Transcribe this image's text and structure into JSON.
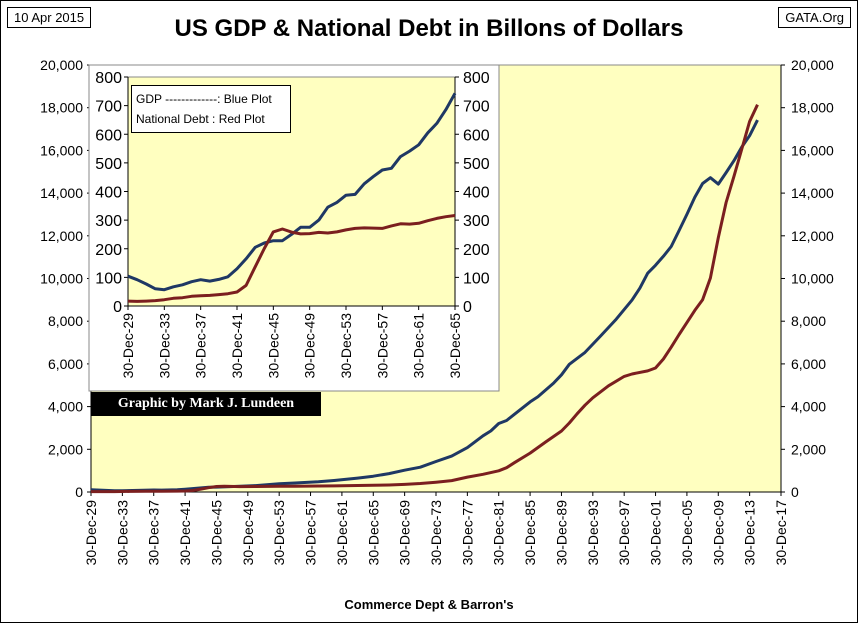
{
  "header": {
    "date": "10 Apr 2015",
    "title": "US GDP & National Debt in Billons of Dollars",
    "source": "GATA.Org"
  },
  "footer": {
    "source": "Commerce Dept & Barron's"
  },
  "credit": "Graphic by Mark J. Lundeen",
  "legend": {
    "gdp": "GDP -------------: Blue Plot",
    "debt": "National Debt : Red Plot"
  },
  "colors": {
    "plot_bg": "#ffffc0",
    "gdp": "#1f3864",
    "debt": "#7b1f1f",
    "inset_bg": "#ffffc0"
  },
  "chart_data": [
    {
      "type": "line",
      "title": "US GDP & National Debt in Billons of Dollars",
      "xlabel": "",
      "ylabel": "",
      "xlim": [
        1929,
        2017
      ],
      "ylim": [
        0,
        20000
      ],
      "y_ticks": [
        "0",
        "2,000",
        "4,000",
        "6,000",
        "8,000",
        "10,000",
        "12,000",
        "14,000",
        "16,000",
        "18,000",
        "20,000"
      ],
      "x_ticks": [
        "30-Dec-29",
        "30-Dec-33",
        "30-Dec-37",
        "30-Dec-41",
        "30-Dec-45",
        "30-Dec-49",
        "30-Dec-53",
        "30-Dec-57",
        "30-Dec-61",
        "30-Dec-65",
        "30-Dec-69",
        "30-Dec-73",
        "30-Dec-77",
        "30-Dec-81",
        "30-Dec-85",
        "30-Dec-89",
        "30-Dec-93",
        "30-Dec-97",
        "30-Dec-01",
        "30-Dec-05",
        "30-Dec-09",
        "30-Dec-13",
        "30-Dec-17"
      ],
      "grid": false,
      "series": [
        {
          "name": "GDP",
          "x": [
            1929,
            1932,
            1933,
            1935,
            1937,
            1938,
            1940,
            1941,
            1944,
            1945,
            1948,
            1950,
            1953,
            1955,
            1958,
            1960,
            1963,
            1965,
            1967,
            1969,
            1971,
            1973,
            1975,
            1977,
            1979,
            1980,
            1981,
            1982,
            1983,
            1985,
            1986,
            1988,
            1989,
            1990,
            1992,
            1994,
            1996,
            1998,
            1999,
            2000,
            2001,
            2002,
            2003,
            2004,
            2005,
            2006,
            2007,
            2008,
            2009,
            2010,
            2011,
            2012,
            2013,
            2014
          ],
          "y": [
            104,
            60,
            57,
            74,
            92,
            87,
            102,
            130,
            220,
            228,
            270,
            300,
            390,
            420,
            480,
            540,
            650,
            740,
            860,
            1020,
            1160,
            1430,
            1680,
            2080,
            2630,
            2860,
            3210,
            3350,
            3640,
            4220,
            4460,
            5100,
            5490,
            5980,
            6540,
            7310,
            8100,
            8990,
            9550,
            10250,
            10620,
            11040,
            11500,
            12250,
            13000,
            13810,
            14450,
            14720,
            14420,
            14960,
            15520,
            16160,
            16690,
            17420
          ]
        },
        {
          "name": "National Debt",
          "x": [
            1929,
            1932,
            1934,
            1936,
            1938,
            1940,
            1941,
            1942,
            1943,
            1944,
            1945,
            1946,
            1948,
            1950,
            1953,
            1955,
            1958,
            1960,
            1963,
            1965,
            1967,
            1969,
            1971,
            1973,
            1975,
            1977,
            1979,
            1981,
            1982,
            1983,
            1985,
            1987,
            1989,
            1990,
            1991,
            1992,
            1993,
            1995,
            1997,
            1998,
            2000,
            2001,
            2002,
            2003,
            2004,
            2005,
            2006,
            2007,
            2008,
            2009,
            2010,
            2011,
            2012,
            2013,
            2014
          ],
          "y": [
            17,
            19,
            27,
            34,
            37,
            43,
            49,
            72,
            137,
            201,
            259,
            269,
            252,
            257,
            266,
            273,
            280,
            286,
            306,
            316,
            326,
            354,
            398,
            458,
            533,
            699,
            827,
            995,
            1137,
            1372,
            1823,
            2346,
            2857,
            3233,
            3665,
            4065,
            4411,
            4974,
            5413,
            5526,
            5674,
            5807,
            6228,
            6783,
            7379,
            7933,
            8507,
            9008,
            10025,
            11910,
            13562,
            14790,
            16066,
            17352,
            18141
          ]
        }
      ]
    },
    {
      "type": "line",
      "title": "",
      "xlabel": "",
      "ylabel": "",
      "xlim": [
        1929,
        1965
      ],
      "ylim": [
        0,
        800
      ],
      "y_ticks": [
        "0",
        "100",
        "200",
        "300",
        "400",
        "500",
        "600",
        "700",
        "800"
      ],
      "x_ticks": [
        "30-Dec-29",
        "30-Dec-33",
        "30-Dec-37",
        "30-Dec-41",
        "30-Dec-45",
        "30-Dec-49",
        "30-Dec-53",
        "30-Dec-57",
        "30-Dec-61",
        "30-Dec-65"
      ],
      "grid": false,
      "series": [
        {
          "name": "GDP",
          "x": [
            1929,
            1930,
            1931,
            1932,
            1933,
            1934,
            1935,
            1936,
            1937,
            1938,
            1939,
            1940,
            1941,
            1942,
            1943,
            1944,
            1945,
            1946,
            1947,
            1948,
            1949,
            1950,
            1951,
            1952,
            1953,
            1954,
            1955,
            1956,
            1957,
            1958,
            1959,
            1960,
            1961,
            1962,
            1963,
            1964,
            1965
          ],
          "y": [
            104,
            92,
            77,
            60,
            57,
            67,
            74,
            85,
            92,
            87,
            93,
            102,
            130,
            165,
            205,
            220,
            228,
            228,
            250,
            275,
            275,
            300,
            345,
            362,
            387,
            390,
            427,
            452,
            475,
            481,
            522,
            541,
            563,
            605,
            638,
            686,
            743
          ]
        },
        {
          "name": "National Debt",
          "x": [
            1929,
            1930,
            1931,
            1932,
            1933,
            1934,
            1935,
            1936,
            1937,
            1938,
            1939,
            1940,
            1941,
            1942,
            1943,
            1944,
            1945,
            1946,
            1947,
            1948,
            1949,
            1950,
            1951,
            1952,
            1953,
            1954,
            1955,
            1956,
            1957,
            1958,
            1959,
            1960,
            1961,
            1962,
            1963,
            1964,
            1965
          ],
          "y": [
            17,
            16,
            17,
            19,
            22,
            27,
            29,
            34,
            36,
            37,
            40,
            43,
            49,
            72,
            137,
            201,
            259,
            269,
            258,
            252,
            253,
            257,
            255,
            259,
            266,
            271,
            273,
            272,
            271,
            280,
            287,
            286,
            289,
            298,
            306,
            312,
            316
          ]
        }
      ]
    }
  ]
}
